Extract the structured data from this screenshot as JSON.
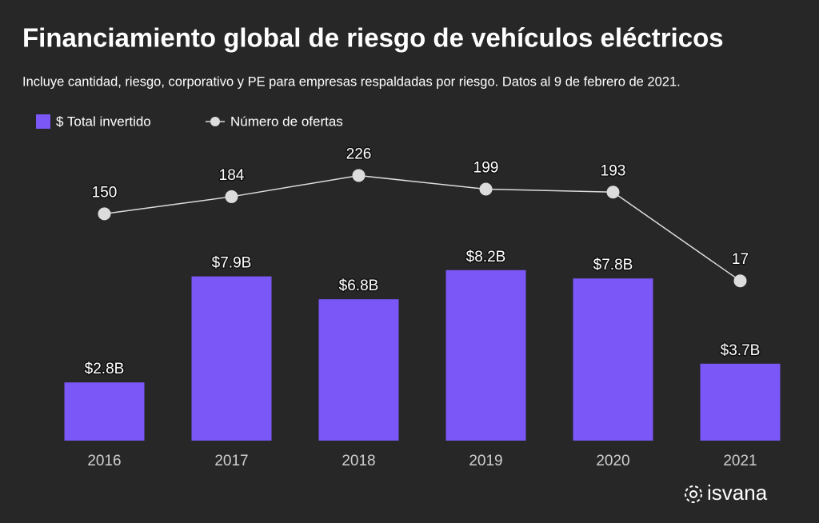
{
  "chart_data": {
    "type": "bar",
    "title": "Financiamiento global de riesgo de vehículos eléctricos",
    "subtitle": "Incluye cantidad, riesgo, corporativo y PE para empresas respaldadas por riesgo. Datos al 9 de febrero de 2021.",
    "categories": [
      "2016",
      "2017",
      "2018",
      "2019",
      "2020",
      "2021"
    ],
    "series": [
      {
        "name": "$ Total invertido",
        "type": "bar",
        "color": "#7b57f7",
        "values": [
          2.8,
          7.9,
          6.8,
          8.2,
          7.8,
          3.7
        ],
        "value_labels": [
          "$2.8B",
          "$7.9B",
          "$6.8B",
          "$8.2B",
          "$7.8B",
          "$3.7B"
        ]
      },
      {
        "name": "Número de ofertas",
        "type": "line",
        "axis": "y2",
        "color": "#dcdcdc",
        "values": [
          150,
          184,
          226,
          199,
          193,
          17
        ]
      }
    ],
    "ylim": [
      0,
      20
    ],
    "y2lim": [
      -300,
      525
    ],
    "logo": "isvana"
  }
}
